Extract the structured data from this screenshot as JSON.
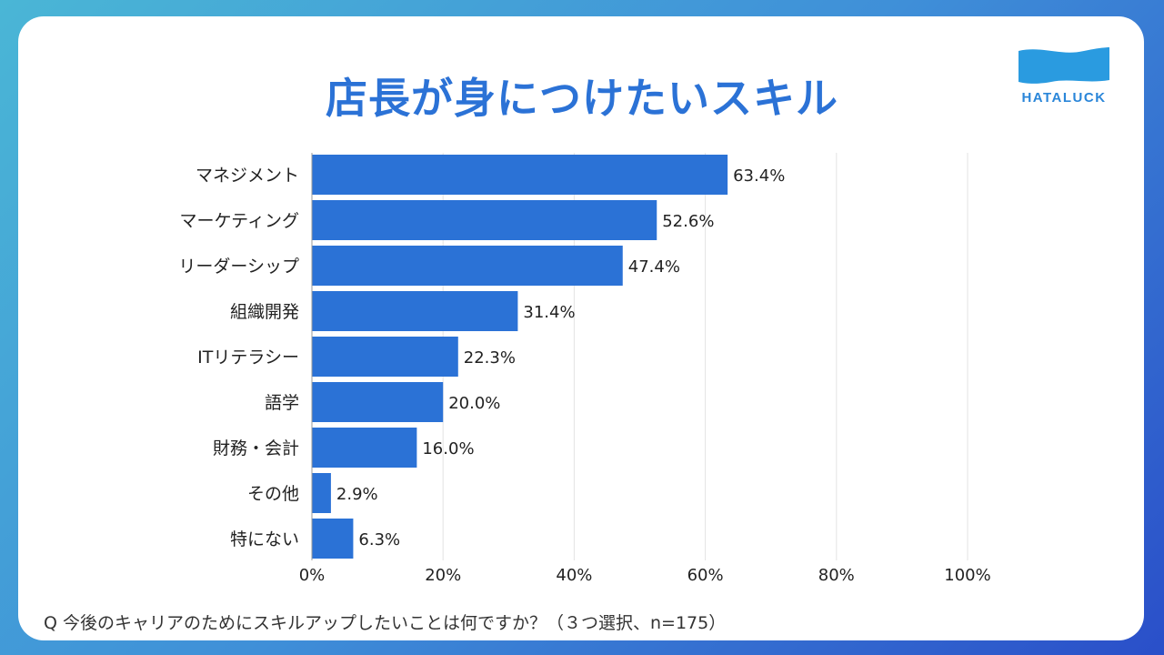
{
  "title": "店長が身につけたいスキル",
  "logo_text": "HATALUCK",
  "question": "Q 今後のキャリアのためにスキルアップしたいことは何ですか？（３つ選択、n=175）",
  "colors": {
    "bar": "#2b72d6",
    "title": "#2b72d6",
    "grid": "#e3e3e3"
  },
  "chart_data": {
    "type": "bar",
    "orientation": "horizontal",
    "categories": [
      "マネジメント",
      "マーケティング",
      "リーダーシップ",
      "組織開発",
      "ITリテラシー",
      "語学",
      "財務・会計",
      "その他",
      "特にない"
    ],
    "values": [
      63.4,
      52.6,
      47.4,
      31.4,
      22.3,
      20.0,
      16.0,
      2.9,
      6.3
    ],
    "value_labels": [
      "63.4%",
      "52.6%",
      "47.4%",
      "31.4%",
      "22.3%",
      "20.0%",
      "16.0%",
      "2.9%",
      "6.3%"
    ],
    "xlim": [
      0,
      100
    ],
    "ticks": [
      0,
      20,
      40,
      60,
      80,
      100
    ],
    "tick_labels": [
      "0%",
      "20%",
      "40%",
      "60%",
      "80%",
      "100%"
    ],
    "grid": true
  }
}
